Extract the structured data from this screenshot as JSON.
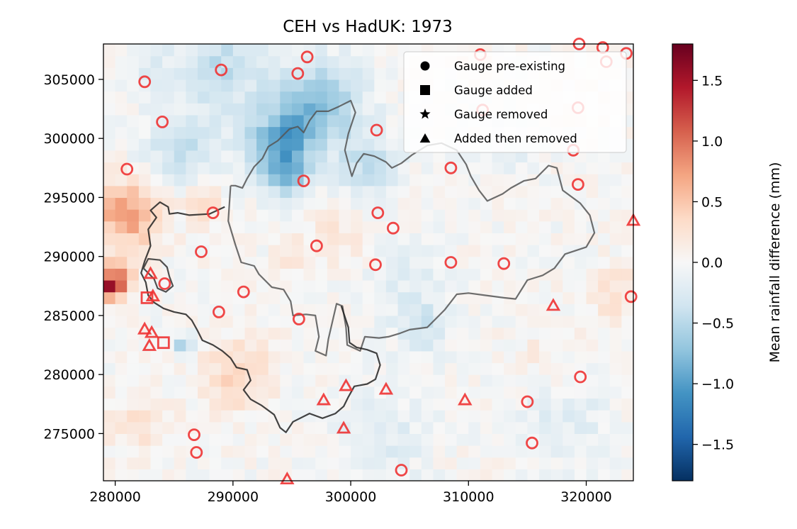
{
  "chart_data": {
    "type": "heatmap",
    "title": "CEH vs HadUK: 1973",
    "xlabel": "",
    "ylabel": "",
    "xlim": [
      279000,
      324000
    ],
    "ylim": [
      271000,
      308000
    ],
    "cell_size": 1000,
    "x_ticks": [
      280000,
      290000,
      300000,
      310000,
      320000
    ],
    "y_ticks": [
      275000,
      280000,
      285000,
      290000,
      295000,
      300000,
      305000
    ],
    "colorbar": {
      "label": "Mean rainfall difference (mm)",
      "range": [
        -1.8,
        1.8
      ],
      "ticks": [
        -1.5,
        -1.0,
        -0.5,
        0.0,
        0.5,
        1.0,
        1.5
      ],
      "tick_labels": [
        "−1.5",
        "−1.0",
        "−0.5",
        "0.0",
        "0.5",
        "1.0",
        "1.5"
      ],
      "colormap": "RdBu_r"
    },
    "legend": {
      "placement": "top-right",
      "entries": [
        {
          "marker": "circle",
          "label": "Gauge pre-existing"
        },
        {
          "marker": "square",
          "label": "Gauge added"
        },
        {
          "marker": "star",
          "label": "Gauge removed"
        },
        {
          "marker": "triangle",
          "label": "Added then removed"
        }
      ]
    },
    "marker_color": "#ee3333",
    "gauges_preexisting": [
      [
        282500,
        304800
      ],
      [
        284000,
        301400
      ],
      [
        289000,
        305800
      ],
      [
        295500,
        305500
      ],
      [
        296300,
        306900
      ],
      [
        281000,
        297400
      ],
      [
        288300,
        293700
      ],
      [
        287300,
        290400
      ],
      [
        284200,
        287700
      ],
      [
        288800,
        285300
      ],
      [
        290900,
        287000
      ],
      [
        296000,
        296400
      ],
      [
        297100,
        290900
      ],
      [
        295600,
        284700
      ],
      [
        302200,
        300700
      ],
      [
        302300,
        293700
      ],
      [
        303600,
        292400
      ],
      [
        302100,
        289300
      ],
      [
        308500,
        297500
      ],
      [
        308500,
        289500
      ],
      [
        313000,
        289400
      ],
      [
        311000,
        307100
      ],
      [
        311200,
        302400
      ],
      [
        318900,
        299000
      ],
      [
        319300,
        296100
      ],
      [
        319300,
        302600
      ],
      [
        319400,
        308000
      ],
      [
        321400,
        307700
      ],
      [
        321700,
        306500
      ],
      [
        323400,
        307200
      ],
      [
        323800,
        286600
      ],
      [
        319500,
        279800
      ],
      [
        315000,
        277700
      ],
      [
        315400,
        274200
      ],
      [
        304300,
        271900
      ],
      [
        286700,
        274900
      ],
      [
        286900,
        273400
      ]
    ],
    "gauges_added": [
      [
        282700,
        286500
      ],
      [
        284100,
        282700
      ]
    ],
    "gauges_removed": [],
    "gauges_added_then_removed": [
      [
        283000,
        288500
      ],
      [
        283200,
        286600
      ],
      [
        282500,
        283800
      ],
      [
        283100,
        283500
      ],
      [
        282900,
        282400
      ],
      [
        297700,
        277800
      ],
      [
        299600,
        279000
      ],
      [
        299400,
        275400
      ],
      [
        303000,
        278700
      ],
      [
        309700,
        277800
      ],
      [
        317200,
        285800
      ],
      [
        294600,
        271100
      ],
      [
        324000,
        293000
      ]
    ],
    "field_model": {
      "comment": "approximate anomaly structure read from the colour field",
      "base": 0.0,
      "blobs": [
        [
          289000,
          306000,
          4000,
          -0.45
        ],
        [
          297500,
          303000,
          3500,
          -0.75
        ],
        [
          294000,
          299500,
          2800,
          -0.95
        ],
        [
          294500,
          296500,
          1600,
          -0.6
        ],
        [
          301500,
          297500,
          2500,
          -0.45
        ],
        [
          285500,
          298800,
          3000,
          -0.4
        ],
        [
          281000,
          293500,
          2800,
          0.75
        ],
        [
          280000,
          288000,
          1500,
          0.95
        ],
        [
          279500,
          287500,
          900,
          0.7
        ],
        [
          287500,
          294500,
          1500,
          0.45
        ],
        [
          290500,
          280000,
          3000,
          0.4
        ],
        [
          285800,
          282500,
          800,
          -0.65
        ],
        [
          305000,
          288000,
          3000,
          -0.2
        ],
        [
          306000,
          284000,
          2200,
          -0.35
        ],
        [
          303000,
          275000,
          4000,
          -0.2
        ],
        [
          318000,
          276000,
          4000,
          -0.2
        ],
        [
          316500,
          281500,
          3000,
          0.12
        ],
        [
          322500,
          287000,
          2500,
          0.25
        ],
        [
          282000,
          276000,
          2600,
          0.25
        ],
        [
          299000,
          292000,
          2400,
          0.2
        ],
        [
          295000,
          290000,
          1400,
          0.25
        ],
        [
          319000,
          304000,
          3000,
          0.06
        ],
        [
          313000,
          299000,
          2600,
          -0.15
        ],
        [
          283000,
          305500,
          2000,
          -0.2
        ],
        [
          310500,
          307000,
          2000,
          0.2
        ],
        [
          312000,
          272000,
          3000,
          0.05
        ]
      ],
      "seed": 1973,
      "noise": 0.12
    },
    "boundaries": [
      {
        "name": "outer",
        "color": "#555555",
        "points": [
          [
            289800,
            296000
          ],
          [
            289600,
            293000
          ],
          [
            290200,
            291000
          ],
          [
            290700,
            289500
          ],
          [
            291800,
            289200
          ],
          [
            292200,
            288500
          ],
          [
            293300,
            287400
          ],
          [
            294300,
            287200
          ],
          [
            294900,
            286200
          ],
          [
            295100,
            285000
          ],
          [
            296200,
            285100
          ],
          [
            297000,
            285000
          ],
          [
            297300,
            283200
          ],
          [
            297000,
            282000
          ],
          [
            297900,
            281600
          ],
          [
            298100,
            283000
          ],
          [
            298800,
            286000
          ],
          [
            299300,
            285800
          ],
          [
            299600,
            284000
          ],
          [
            299700,
            282500
          ],
          [
            300800,
            282000
          ],
          [
            301200,
            283200
          ],
          [
            302400,
            283100
          ],
          [
            303200,
            283200
          ],
          [
            304200,
            283500
          ],
          [
            305000,
            283800
          ],
          [
            306500,
            284000
          ],
          [
            308000,
            285500
          ],
          [
            309000,
            286800
          ],
          [
            310000,
            286900
          ],
          [
            311500,
            286700
          ],
          [
            313000,
            286500
          ],
          [
            314000,
            286400
          ],
          [
            315000,
            288000
          ],
          [
            316300,
            288400
          ],
          [
            317300,
            289000
          ],
          [
            318200,
            290200
          ],
          [
            320000,
            290800
          ],
          [
            320700,
            292000
          ],
          [
            320300,
            293500
          ],
          [
            319500,
            294500
          ],
          [
            318000,
            295600
          ],
          [
            317500,
            297500
          ],
          [
            316800,
            297700
          ],
          [
            315700,
            296600
          ],
          [
            314700,
            296400
          ],
          [
            313600,
            295800
          ],
          [
            312900,
            295300
          ],
          [
            311600,
            294700
          ],
          [
            310900,
            295600
          ],
          [
            310200,
            296800
          ],
          [
            309800,
            297800
          ],
          [
            309000,
            299000
          ],
          [
            307700,
            299600
          ],
          [
            306500,
            299400
          ],
          [
            305200,
            298600
          ],
          [
            304300,
            297900
          ],
          [
            303500,
            297500
          ],
          [
            303000,
            298000
          ],
          [
            302000,
            298500
          ],
          [
            301100,
            298700
          ],
          [
            300500,
            297900
          ],
          [
            300100,
            296800
          ],
          [
            299900,
            297500
          ],
          [
            299500,
            299000
          ],
          [
            299800,
            300400
          ],
          [
            300400,
            302200
          ],
          [
            300000,
            303200
          ],
          [
            299000,
            302700
          ],
          [
            298100,
            302300
          ],
          [
            297100,
            302300
          ],
          [
            296500,
            301500
          ],
          [
            296000,
            300500
          ],
          [
            295500,
            301000
          ],
          [
            294800,
            300800
          ],
          [
            293800,
            299800
          ],
          [
            293000,
            299300
          ],
          [
            292500,
            298300
          ],
          [
            291800,
            297600
          ],
          [
            291200,
            296600
          ],
          [
            290800,
            295800
          ],
          [
            290200,
            296000
          ],
          [
            289800,
            296000
          ]
        ]
      },
      {
        "name": "west",
        "color": "#222222",
        "points": [
          [
            289300,
            294200
          ],
          [
            288000,
            293600
          ],
          [
            286300,
            293500
          ],
          [
            285300,
            293700
          ],
          [
            284600,
            293600
          ],
          [
            284500,
            294200
          ],
          [
            283800,
            294600
          ],
          [
            283000,
            293900
          ],
          [
            283500,
            293300
          ],
          [
            282800,
            292300
          ],
          [
            283000,
            290900
          ],
          [
            282500,
            289600
          ],
          [
            282200,
            288600
          ],
          [
            282600,
            287800
          ],
          [
            282800,
            286700
          ],
          [
            283300,
            286100
          ],
          [
            284100,
            285600
          ],
          [
            285000,
            285300
          ],
          [
            286000,
            285100
          ],
          [
            286500,
            284600
          ],
          [
            287000,
            283700
          ],
          [
            287400,
            282900
          ],
          [
            288300,
            282500
          ],
          [
            289100,
            282000
          ],
          [
            289800,
            281400
          ],
          [
            290300,
            280600
          ],
          [
            291200,
            280400
          ],
          [
            291500,
            279500
          ],
          [
            290900,
            278700
          ],
          [
            291500,
            277900
          ],
          [
            292400,
            277400
          ],
          [
            293500,
            276600
          ],
          [
            294000,
            275500
          ],
          [
            294500,
            275100
          ],
          [
            295100,
            276000
          ],
          [
            296500,
            276700
          ],
          [
            297600,
            276300
          ],
          [
            298700,
            276700
          ],
          [
            299400,
            277300
          ],
          [
            299800,
            278100
          ],
          [
            300300,
            279000
          ],
          [
            301400,
            279200
          ],
          [
            302100,
            279600
          ],
          [
            302500,
            280800
          ],
          [
            302200,
            281800
          ],
          [
            301400,
            282100
          ],
          [
            300500,
            282300
          ],
          [
            299900,
            282700
          ],
          [
            299800,
            284000
          ],
          [
            299200,
            285800
          ]
        ]
      },
      {
        "name": "west-small",
        "color": "#333333",
        "points": [
          [
            282400,
            289000
          ],
          [
            282800,
            289800
          ],
          [
            283800,
            289700
          ],
          [
            284400,
            289100
          ],
          [
            284600,
            288300
          ],
          [
            284900,
            287500
          ],
          [
            284300,
            287000
          ],
          [
            283600,
            287300
          ],
          [
            283300,
            288100
          ],
          [
            282400,
            289000
          ]
        ]
      }
    ]
  }
}
